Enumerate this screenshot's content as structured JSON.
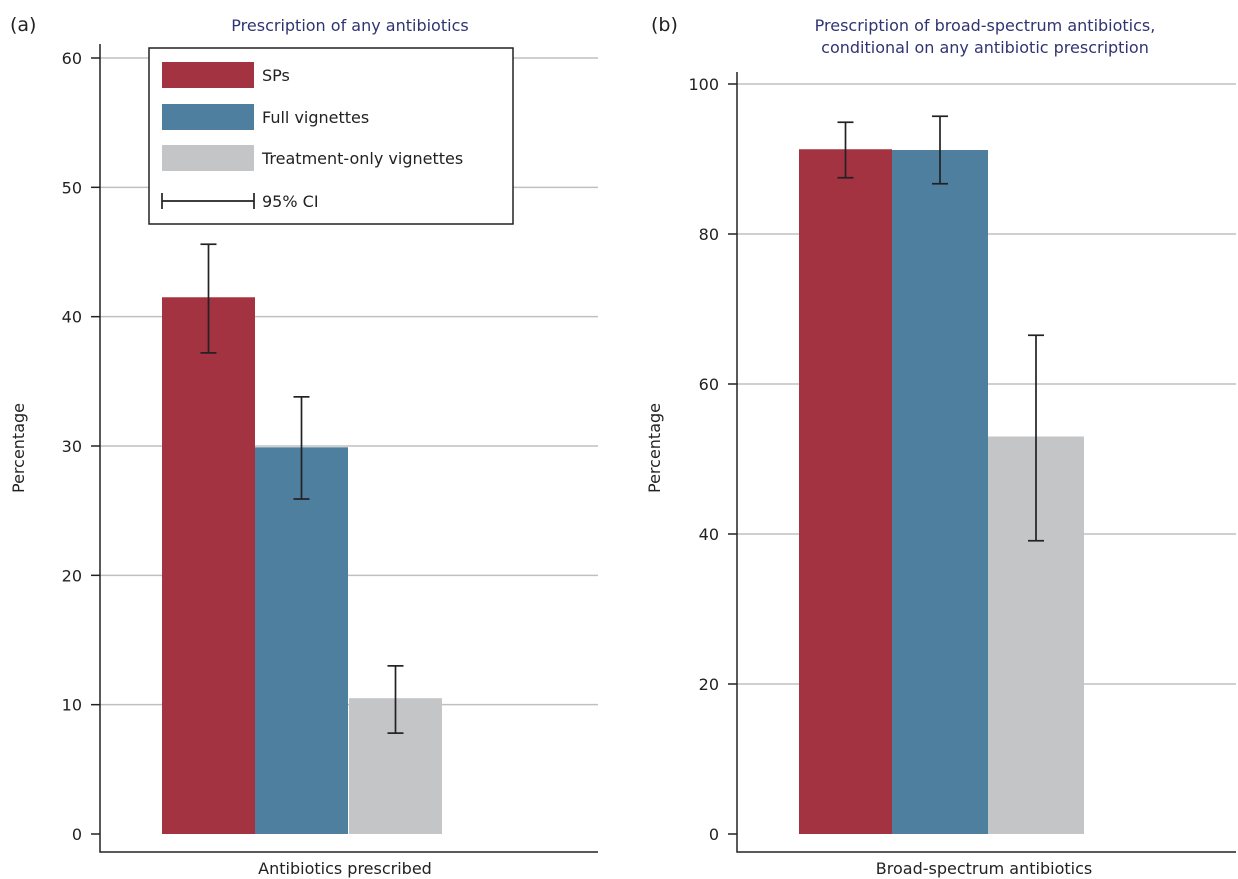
{
  "legend": {
    "items": [
      {
        "label": "SPs",
        "color": "#a33341"
      },
      {
        "label": "Full vignettes",
        "color": "#4e7f9f"
      },
      {
        "label": "Treatment-only vignettes",
        "color": "#c4c5c7"
      }
    ],
    "ci_label": "95% CI"
  },
  "chart_data": [
    {
      "panel": "(a)",
      "type": "bar",
      "title": "Prescription of any antibiotics",
      "subtitle": "",
      "xlabel": "Antibiotics prescribed",
      "ylabel": "Percentage",
      "ylim": [
        0,
        60
      ],
      "yticks": [
        0,
        10,
        20,
        30,
        40,
        50,
        60
      ],
      "grid": true,
      "legend_position": "top-left",
      "series": [
        {
          "name": "SPs",
          "value": 41.5,
          "ci": [
            37.2,
            45.6
          ],
          "color": "#a33341"
        },
        {
          "name": "Full vignettes",
          "value": 29.9,
          "ci": [
            25.9,
            33.8
          ],
          "color": "#4e7f9f"
        },
        {
          "name": "Treatment-only vignettes",
          "value": 10.5,
          "ci": [
            7.8,
            13.0
          ],
          "color": "#c4c5c7"
        }
      ]
    },
    {
      "panel": "(b)",
      "type": "bar",
      "title": "Prescription of broad-spectrum antibiotics,",
      "subtitle": "conditional on any antibiotic prescription",
      "xlabel": "Broad-spectrum antibiotics",
      "ylabel": "Percentage",
      "ylim": [
        0,
        100
      ],
      "yticks": [
        0,
        20,
        40,
        60,
        80,
        100
      ],
      "grid": true,
      "series": [
        {
          "name": "SPs",
          "value": 91.3,
          "ci": [
            87.5,
            94.9
          ],
          "color": "#a33341"
        },
        {
          "name": "Full vignettes",
          "value": 91.2,
          "ci": [
            86.7,
            95.7
          ],
          "color": "#4e7f9f"
        },
        {
          "name": "Treatment-only vignettes",
          "value": 53.0,
          "ci": [
            39.1,
            66.5
          ],
          "color": "#c4c5c7"
        }
      ]
    }
  ]
}
